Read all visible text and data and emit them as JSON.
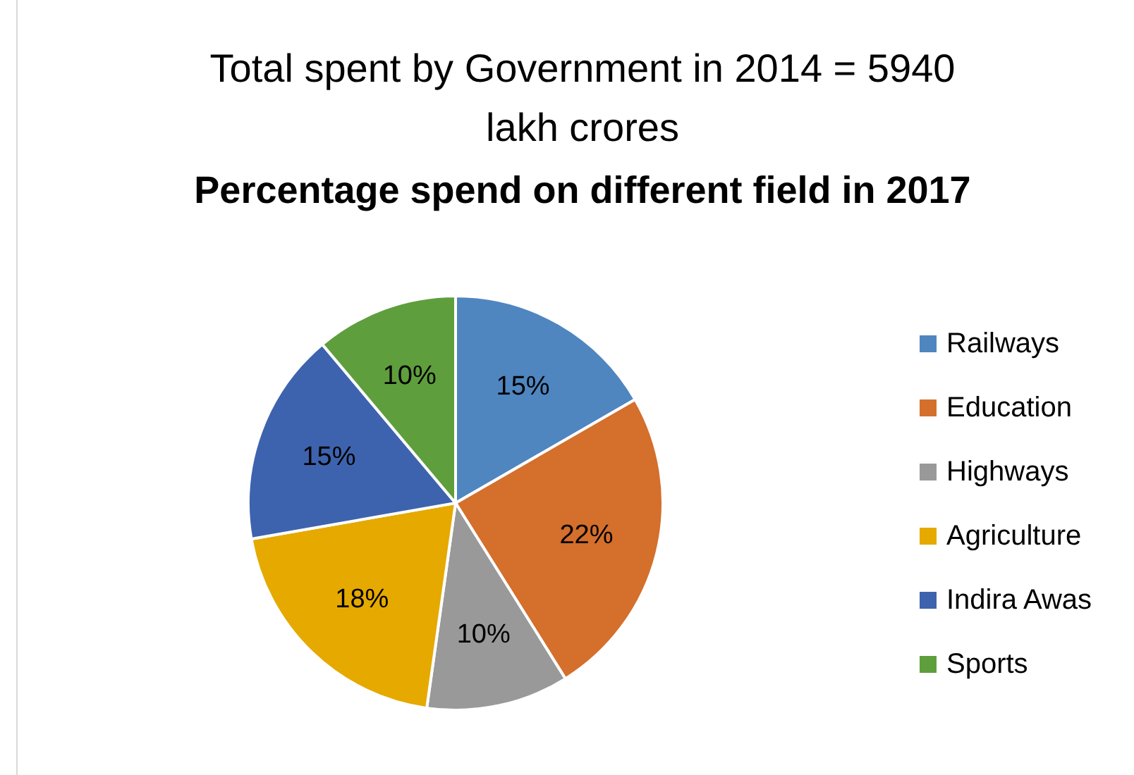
{
  "chart_data": {
    "type": "pie",
    "title": "Total spent by Government in 2014 = 5940 lakh crores",
    "subtitle": "Percentage spend on different field in 2017",
    "categories": [
      "Railways",
      "Education",
      "Highways",
      "Agriculture",
      "Indira Awas",
      "Sports"
    ],
    "values": [
      15,
      22,
      10,
      18,
      15,
      10
    ],
    "colors": [
      "#4f86c0",
      "#d46f2c",
      "#999999",
      "#e5a900",
      "#3e63ae",
      "#5f9e3c"
    ],
    "value_labels": [
      "15%",
      "22%",
      "10%",
      "18%",
      "15%",
      "10%"
    ],
    "legend": "right"
  }
}
